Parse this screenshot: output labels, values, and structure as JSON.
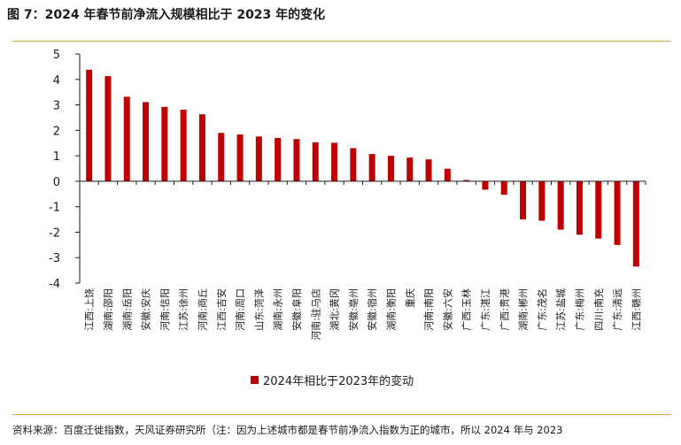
{
  "figure": {
    "title": "图 7：2024 年春节前净流入规模相比于 2023 年的变化",
    "source": "资料来源：百度迁徙指数，天风证券研究所（注：因为上述城市都是春节前净流入指数为正的城市，所以 2024 年与 2023"
  },
  "colors": {
    "bar": "#c00000",
    "accent_rule": "#d8a640",
    "axis": "#1a1a1a"
  },
  "chart_data": {
    "type": "bar",
    "title": "",
    "xlabel": "",
    "ylabel": "",
    "ylim": [
      -4,
      5
    ],
    "yticks": [
      5,
      4,
      3,
      2,
      1,
      0,
      -1,
      -2,
      -3,
      -4
    ],
    "legend": {
      "label": "2024年相比于2023年的变动",
      "placement": "bottom-center"
    },
    "categories": [
      "江西:上饶",
      "湖南:邵阳",
      "湖南:岳阳",
      "安徽:安庆",
      "河南:信阳",
      "江苏:徐州",
      "河南:商丘",
      "江西:吉安",
      "河南:周口",
      "山东:菏泽",
      "湖南:永州",
      "安徽:阜阳",
      "河南:驻马店",
      "湖北:黄冈",
      "安徽:亳州",
      "安徽:宿州",
      "湖南:衡阳",
      "重庆",
      "河南:南阳",
      "安徽:六安",
      "广西:玉林",
      "广东:湛江",
      "广西:贵港",
      "湖南:郴州",
      "广东:茂名",
      "江苏:盐城",
      "广东:梅州",
      "四川:南充",
      "广东:清远",
      "江西:赣州"
    ],
    "values": [
      4.38,
      4.13,
      3.32,
      3.11,
      2.92,
      2.81,
      2.63,
      1.9,
      1.84,
      1.76,
      1.7,
      1.66,
      1.53,
      1.51,
      1.3,
      1.07,
      1.0,
      0.93,
      0.86,
      0.49,
      0.05,
      -0.33,
      -0.53,
      -1.5,
      -1.55,
      -1.9,
      -2.1,
      -2.25,
      -2.5,
      -3.35
    ]
  }
}
